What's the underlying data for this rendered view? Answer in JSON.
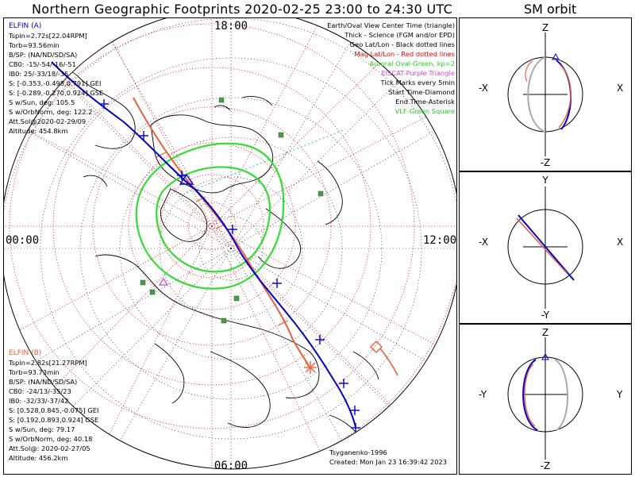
{
  "title": "Northern Geographic Footprints 2020-02-25 23:00 to 24:30 UTC",
  "orbit_title": "SM orbit",
  "mlt_labels": {
    "top": "18:00",
    "left": "00:00",
    "right": "12:00",
    "bottom": "06:00"
  },
  "elfin_a": {
    "name": "ELFIN (A)",
    "color": "#0000cc",
    "lines": [
      "Tspin=2.72s[22.04RPM]",
      "Torb=93.56min",
      "B/SP: (NA/ND/SD/SA)",
      "CB0: -15/-54/-16/-51",
      "IB0: 25/-33/18/-35",
      "S: [-0.353,-0.498,0.791] GEI",
      "S: [-0.289,-0.270,0.924] GSE",
      "S w/Sun, deg: 105.5",
      "S w/OrbNorm, deg: 122.2",
      "Att.Sol@2020-02-29/09",
      "Altitude: 454.8km"
    ]
  },
  "elfin_b": {
    "name": "ELFIN (B)",
    "color": "#e8603c",
    "lines": [
      "Tspin=2.82s[21.27RPM]",
      "Torb=93.73min",
      "B/SP: (NA/ND/SD/SA)",
      "CB0: -24/13/-35/23",
      "IB0: -32/33/-37/42",
      "S: [0.528,0.845,-0.075] GEI",
      "S: [0.192,0.893,0.924] GSE",
      "S w/Sun, deg: 79.17",
      "S w/OrbNorm, deg: 40.18",
      "Att.Sol@: 2020-02-27/05",
      "Altitude: 456.2km"
    ]
  },
  "legend": [
    {
      "text": "Earth/Oval View Center Time (triangle)",
      "color": "#000000"
    },
    {
      "text": "Thick - Science (FGM and/or EPD)",
      "color": "#000000"
    },
    {
      "text": "Geo Lat/Lon - Black dotted lines",
      "color": "#000000"
    },
    {
      "text": "Mag Lat/Lon - Red dotted lines",
      "color": "#e00000"
    },
    {
      "text": "Auroral Oval-Green, kp=2",
      "color": "#22cc22"
    },
    {
      "text": "EISCAT-Purple Triangle",
      "color": "#cc44cc"
    },
    {
      "text": "Tick Marks every 5min",
      "color": "#000000"
    },
    {
      "text": "Start Time-Diamond",
      "color": "#000000"
    },
    {
      "text": "End Time-Asterisk",
      "color": "#000000"
    },
    {
      "text": "VLF-Green Square",
      "color": "#22cc22"
    }
  ],
  "model": "Tsyganenko-1996",
  "created": "Created: Mon Jan 23 16:39:42 2023",
  "panels": [
    {
      "top": "Z",
      "bottom": "-Z",
      "left": "-X",
      "right": "X"
    },
    {
      "top": "Y",
      "bottom": "-Y",
      "left": "-X",
      "right": "X"
    },
    {
      "top": "Z",
      "bottom": "-Z",
      "left": "-Y",
      "right": "Y"
    }
  ]
}
